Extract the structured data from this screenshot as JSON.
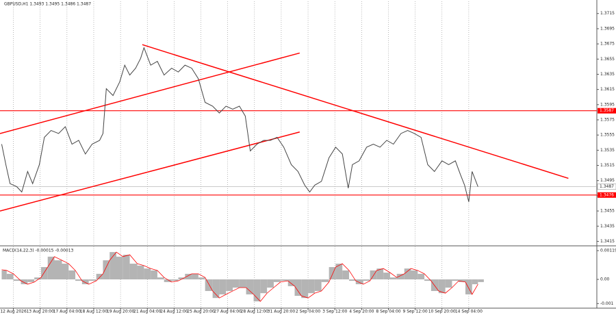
{
  "chart_data": [
    {
      "type": "line",
      "title": "GBPUSD,H1 1.3493 1.3495 1.3486 1.3487",
      "xlim": [
        0,
        713
      ],
      "ylim": [
        1.341,
        1.3731
      ],
      "xgrid": true,
      "yticks": [
        1.3715,
        1.3695,
        1.3675,
        1.3655,
        1.3635,
        1.3615,
        1.3595,
        1.3575,
        1.3555,
        1.3535,
        1.3515,
        1.3495,
        1.3475,
        1.3455,
        1.3435,
        1.3415
      ],
      "x": [
        2,
        7,
        12,
        20,
        26,
        33,
        39,
        47,
        53,
        61,
        70,
        78,
        86,
        94,
        102,
        110,
        119,
        123,
        127,
        135,
        143,
        149,
        155,
        162,
        168,
        172,
        180,
        188,
        196,
        205,
        213,
        221,
        229,
        237,
        245,
        254,
        262,
        270,
        278,
        286,
        293,
        299,
        307,
        315,
        323,
        331,
        339,
        348,
        356,
        364,
        370,
        376,
        384,
        393,
        401,
        409,
        416,
        421,
        429,
        438,
        446,
        454,
        462,
        470,
        479,
        487,
        495,
        503,
        511,
        519,
        528,
        536,
        544,
        550,
        555,
        560,
        564,
        571
      ],
      "series": [
        {
          "color": "#444444",
          "values": [
            1.3543,
            1.3516,
            1.3491,
            1.3487,
            1.348,
            1.3507,
            1.3491,
            1.3516,
            1.3552,
            1.3561,
            1.3557,
            1.3566,
            1.3543,
            1.3548,
            1.353,
            1.3543,
            1.3548,
            1.3557,
            1.3616,
            1.3607,
            1.3625,
            1.3647,
            1.3634,
            1.3643,
            1.3656,
            1.367,
            1.3647,
            1.3652,
            1.3634,
            1.3643,
            1.3638,
            1.3647,
            1.3643,
            1.3629,
            1.3598,
            1.3593,
            1.3584,
            1.3593,
            1.3589,
            1.3593,
            1.358,
            1.3534,
            1.3543,
            1.3548,
            1.3548,
            1.3552,
            1.3539,
            1.3516,
            1.3507,
            1.3489,
            1.348,
            1.3489,
            1.3494,
            1.3525,
            1.3539,
            1.353,
            1.3485,
            1.3516,
            1.3521,
            1.3539,
            1.3543,
            1.3539,
            1.3548,
            1.3543,
            1.3557,
            1.3561,
            1.3557,
            1.3552,
            1.3516,
            1.3507,
            1.3521,
            1.3516,
            1.3521,
            1.3503,
            1.3489,
            1.3467,
            1.3507,
            1.3487
          ]
        }
      ],
      "hlines": [
        {
          "value": 1.3587,
          "color": "#ff0000"
        },
        {
          "value": 1.3476,
          "color": "#ff0000"
        }
      ],
      "last_price": 1.3487,
      "trendlines": [
        {
          "color": "#ff0000",
          "x": [
            0,
            358
          ],
          "y": [
            1.3557,
            1.3663
          ]
        },
        {
          "color": "#ff0000",
          "x": [
            0,
            358
          ],
          "y": [
            1.3455,
            1.3559
          ]
        },
        {
          "color": "#ff0000",
          "x": [
            170,
            679
          ],
          "y": [
            1.3674,
            1.3498
          ]
        }
      ]
    },
    {
      "type": "bar",
      "title": "MACD(14,22,3) -0.00015 -0.00013",
      "xlim": [
        0,
        713
      ],
      "ylim": [
        -0.00119,
        0.00136
      ],
      "yticks": [
        0.00119,
        {
          "value": 0,
          "label": "0.00"
        },
        -0.001
      ],
      "xticks": [
        {
          "value": 16,
          "label": "12 Aug 2026"
        },
        {
          "value": 48,
          "label": "13 Aug 20:00"
        },
        {
          "value": 80,
          "label": "17 Aug 04:00"
        },
        {
          "value": 112,
          "label": "18 Aug 12:00"
        },
        {
          "value": 144,
          "label": "19 Aug 20:00"
        },
        {
          "value": 176,
          "label": "21 Aug 04:00"
        },
        {
          "value": 208,
          "label": "24 Aug 12:00"
        },
        {
          "value": 240,
          "label": "25 Aug 20:00"
        },
        {
          "value": 272,
          "label": "27 Aug 04:00"
        },
        {
          "value": 304,
          "label": "28 Aug 12:00"
        },
        {
          "value": 336,
          "label": "31 Aug 20:00"
        },
        {
          "value": 368,
          "label": "2 Sep 04:00"
        },
        {
          "value": 400,
          "label": "3 Sep 12:00"
        },
        {
          "value": 432,
          "label": "4 Sep 20:00"
        },
        {
          "value": 464,
          "label": "8 Sep 04:00"
        },
        {
          "value": 496,
          "label": "9 Sep 12:00"
        },
        {
          "value": 528,
          "label": "10 Sep 20:00"
        },
        {
          "value": 560,
          "label": "14 Sep 04:00"
        }
      ],
      "x": [
        2,
        8,
        16,
        25,
        33,
        41,
        49,
        57,
        65,
        74,
        82,
        90,
        98,
        106,
        115,
        123,
        131,
        139,
        147,
        155,
        164,
        172,
        180,
        188,
        196,
        205,
        213,
        221,
        229,
        237,
        245,
        254,
        262,
        270,
        278,
        286,
        294,
        303,
        311,
        319,
        327,
        335,
        344,
        352,
        360,
        368,
        376,
        384,
        393,
        401,
        409,
        417,
        425,
        434,
        442,
        450,
        458,
        466,
        474,
        483,
        491,
        499,
        507,
        515,
        524,
        532,
        540,
        548,
        556,
        564,
        571
      ],
      "series": [
        {
          "color": "#b4b4b4",
          "values": [
            0.00037,
            0.00023,
            -6e-05,
            -0.0002,
            -0.00011,
            8e-05,
            0.00051,
            0.00094,
            0.00079,
            0.00065,
            0.00037,
            -6e-05,
            -0.0002,
            -6e-05,
            0.00023,
            0.00079,
            0.00113,
            0.00094,
            0.00102,
            0.00065,
            0.00057,
            0.00045,
            0.00037,
            8e-05,
            -0.00011,
            -6e-05,
            8e-05,
            0.00023,
            0.00023,
            8e-05,
            -0.00048,
            -0.00077,
            -0.00062,
            -0.00048,
            -0.00034,
            -0.00034,
            -0.00062,
            -0.00091,
            -0.00057,
            -0.00034,
            -0.00011,
            -6e-05,
            -0.00028,
            -0.00068,
            -0.00077,
            -0.00057,
            -0.00048,
            -0.00011,
            0.00051,
            0.00065,
            0.00037,
            -6e-05,
            -0.0002,
            -6e-05,
            0.00037,
            0.00045,
            0.00028,
            8e-05,
            0.00023,
            0.00045,
            0.00037,
            0.00023,
            -6e-05,
            -0.00048,
            -0.00057,
            -0.00034,
            -6e-05,
            -0.00011,
            -0.00062,
            -0.0002,
            -0.00011
          ]
        },
        {
          "color": "#ff0000",
          "values": [
            0.0004,
            0.00037,
            0.00023,
            -6e-05,
            -0.0002,
            -0.00011,
            8e-05,
            0.00051,
            0.00094,
            0.00079,
            0.00065,
            0.00037,
            -6e-05,
            -0.0002,
            -6e-05,
            0.00023,
            0.00079,
            0.00113,
            0.00094,
            0.00102,
            0.00065,
            0.00057,
            0.00045,
            0.00037,
            8e-05,
            -0.00011,
            -6e-05,
            8e-05,
            0.00023,
            0.00023,
            8e-05,
            -0.00048,
            -0.00077,
            -0.00062,
            -0.00048,
            -0.00034,
            -0.00034,
            -0.00062,
            -0.00091,
            -0.00057,
            -0.00034,
            -0.00011,
            -6e-05,
            -0.00028,
            -0.00068,
            -0.00077,
            -0.00057,
            -0.00048,
            -0.00011,
            0.00051,
            0.00065,
            0.00037,
            -6e-05,
            -0.0002,
            -6e-05,
            0.00037,
            0.00045,
            0.00028,
            8e-05,
            0.00023,
            0.00045,
            0.00037,
            0.00023,
            -6e-05,
            -0.00048,
            -0.00057,
            -0.00034,
            -6e-05,
            -0.00011,
            -0.00062,
            -0.0002
          ]
        }
      ]
    }
  ]
}
